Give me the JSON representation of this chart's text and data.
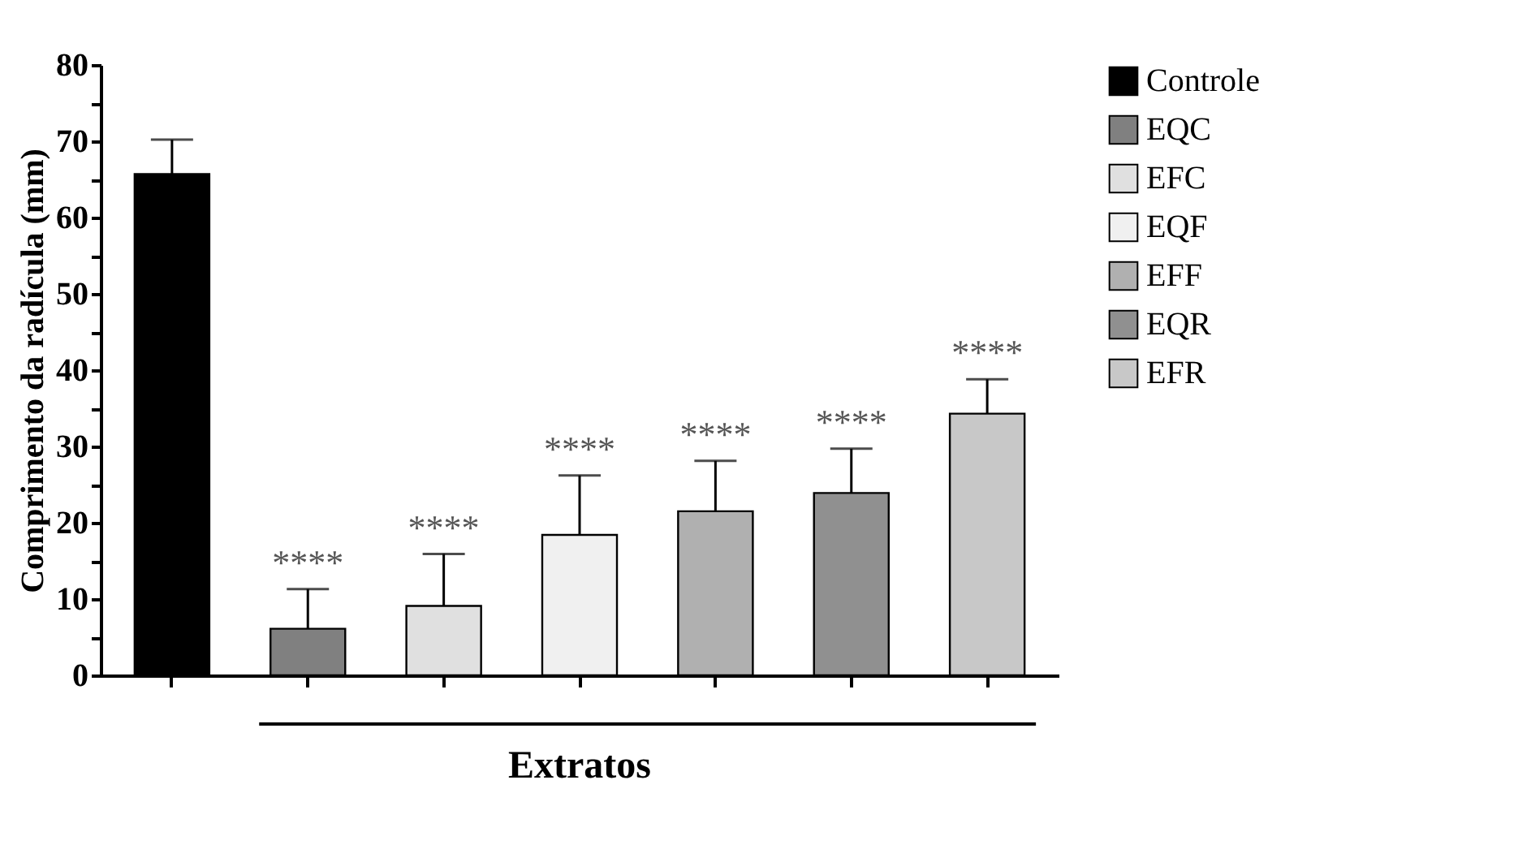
{
  "chart_data": {
    "type": "bar",
    "xlabel": "Extratos",
    "ylabel": "Comprimento da radícula (mm)",
    "categories": [
      null,
      null,
      null,
      null,
      null,
      null,
      null
    ],
    "series": [
      {
        "name": "Controle",
        "color": "#000000",
        "values": [
          65.7,
          null,
          null,
          null,
          null,
          null,
          null
        ],
        "errors": [
          [
            65.7,
            70.2
          ],
          null,
          null,
          null,
          null,
          null,
          null
        ]
      },
      {
        "name": "EQC",
        "color": "#808080",
        "values": [
          null,
          6.1,
          null,
          null,
          null,
          null,
          null
        ],
        "errors": [
          null,
          [
            6.1,
            11.3
          ],
          null,
          null,
          null,
          null,
          null
        ]
      },
      {
        "name": "EFC",
        "color": "#e0e0e0",
        "values": [
          null,
          null,
          9.1,
          null,
          null,
          null,
          null
        ],
        "errors": [
          null,
          null,
          [
            9.1,
            15.9
          ],
          null,
          null,
          null,
          null
        ]
      },
      {
        "name": "EQF",
        "color": "#f0f0f0",
        "values": [
          null,
          null,
          null,
          18.4,
          null,
          null,
          null
        ],
        "errors": [
          null,
          null,
          null,
          [
            18.4,
            26.2
          ],
          null,
          null,
          null
        ]
      },
      {
        "name": "EFF",
        "color": "#b0b0b0",
        "values": [
          null,
          null,
          null,
          null,
          21.5,
          null,
          null
        ],
        "errors": [
          null,
          null,
          null,
          null,
          [
            21.5,
            28.1
          ],
          null,
          null
        ]
      },
      {
        "name": "EQR",
        "color": "#909090",
        "values": [
          null,
          null,
          null,
          null,
          null,
          23.9,
          null
        ],
        "errors": [
          null,
          null,
          null,
          null,
          null,
          [
            23.9,
            29.7
          ],
          null
        ]
      },
      {
        "name": "EFR",
        "color": "#c8c8c8",
        "values": [
          null,
          null,
          null,
          null,
          null,
          null,
          34.3
        ],
        "errors": [
          null,
          null,
          null,
          null,
          null,
          null,
          [
            34.3,
            38.8
          ]
        ]
      }
    ],
    "ylim": [
      0,
      80
    ],
    "yticks": [
      0,
      {
        "value": 5,
        "label": null
      },
      10,
      {
        "value": 15,
        "label": null
      },
      20,
      {
        "value": 25,
        "label": null
      },
      30,
      {
        "value": 35,
        "label": null
      },
      40,
      {
        "value": 45,
        "label": null
      },
      50,
      {
        "value": 55,
        "label": null
      },
      60,
      {
        "value": 65,
        "label": null
      },
      70,
      {
        "value": 75,
        "label": null
      },
      80
    ],
    "annotations": [
      {
        "text": "****",
        "y": 11.3
      },
      {
        "text": "****",
        "y": 15.9
      },
      {
        "text": "****",
        "y": 26.2
      },
      {
        "text": "****",
        "y": 28.1
      },
      {
        "text": "****",
        "y": 29.7
      },
      {
        "text": "****",
        "y": 38.8
      }
    ],
    "legend": "right",
    "tick_labels": "y",
    "grid": false
  }
}
